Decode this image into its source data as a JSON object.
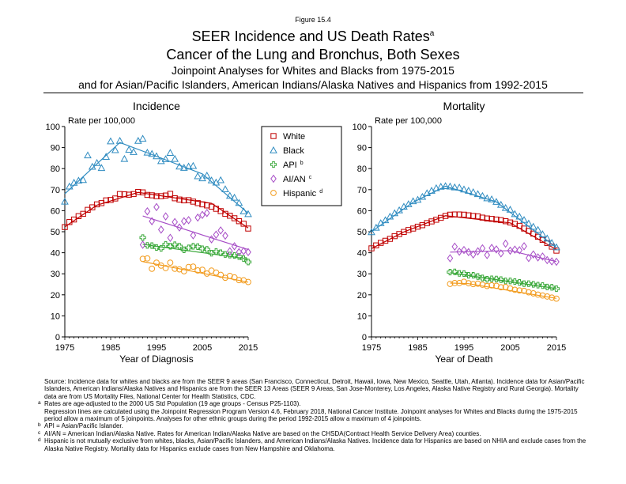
{
  "figure_number": "Figure 15.4",
  "title": {
    "line1": "SEER Incidence and US Death Rates",
    "line1_sup": "a",
    "line2": "Cancer of the Lung and Bronchus, Both Sexes",
    "line3": "Joinpoint Analyses for Whites and Blacks from 1975-2015",
    "line4": "and for Asian/Pacific Islanders, American Indians/Alaska Natives and Hispanics from 1992-2015"
  },
  "legend": {
    "items": [
      {
        "label": "White",
        "sup": "",
        "color": "#c00000",
        "marker": "square"
      },
      {
        "label": "Black",
        "sup": "",
        "color": "#2e8bc0",
        "marker": "triangle"
      },
      {
        "label": "API",
        "sup": "b",
        "color": "#3aa83a",
        "marker": "cross"
      },
      {
        "label": "AI/AN",
        "sup": "c",
        "color": "#a64cc6",
        "marker": "diamond"
      },
      {
        "label": "Hispanic",
        "sup": "d",
        "color": "#f29b1d",
        "marker": "circle"
      }
    ]
  },
  "chart_data": [
    {
      "type": "scatter",
      "panel_title": "Incidence",
      "ylabel": "Rate per 100,000",
      "xlabel": "Year of Diagnosis",
      "xlim": [
        1975,
        2015
      ],
      "ylim": [
        0,
        100
      ],
      "xticks": [
        1975,
        1985,
        1995,
        2005,
        2015
      ],
      "yticks": [
        0,
        10,
        20,
        30,
        40,
        50,
        60,
        70,
        80,
        90,
        100
      ],
      "series": [
        {
          "name": "White",
          "x_start": 1975,
          "values": [
            52.2,
            54.6,
            55.8,
            57.4,
            58.5,
            60.4,
            61.6,
            63.0,
            63.6,
            64.9,
            65.1,
            65.8,
            67.9,
            67.8,
            67.6,
            67.9,
            68.9,
            68.7,
            67.5,
            67.3,
            66.9,
            66.9,
            67.2,
            68.0,
            65.9,
            65.3,
            64.9,
            65.0,
            64.3,
            63.6,
            63.0,
            62.5,
            61.9,
            60.9,
            59.8,
            58.5,
            57.6,
            56.4,
            55.0,
            53.8,
            51.5
          ],
          "fit_x": [
            1975,
            1982,
            1991,
            2007,
            2015
          ],
          "fit_y": [
            52.3,
            62.6,
            68.7,
            63.5,
            51.8
          ]
        },
        {
          "name": "Black",
          "x_start": 1975,
          "values": [
            64.3,
            71.5,
            73.3,
            74.3,
            74.6,
            86.3,
            80.9,
            82.7,
            80.3,
            85.6,
            93.0,
            88.8,
            93.2,
            84.6,
            89.0,
            87.9,
            93.2,
            94.2,
            87.6,
            87.0,
            85.9,
            83.6,
            84.5,
            87.5,
            84.6,
            81.0,
            80.4,
            81.0,
            81.3,
            76.4,
            75.4,
            76.7,
            74.4,
            73.4,
            74.5,
            70.2,
            67.1,
            66.2,
            63.7,
            59.7,
            58.4
          ],
          "fit_x": [
            1975,
            1987,
            1993,
            2005,
            2015
          ],
          "fit_y": [
            68.0,
            92.4,
            87.5,
            77.5,
            58.8
          ]
        },
        {
          "name": "API",
          "x_start": 1992,
          "values": [
            47.2,
            43.5,
            43.4,
            42.5,
            42.1,
            44.0,
            43.1,
            43.8,
            43.1,
            41.4,
            42.3,
            43.1,
            42.9,
            41.9,
            41.6,
            39.8,
            40.6,
            40.0,
            39.2,
            38.9,
            38.7,
            38.2,
            37.2,
            35.6
          ],
          "fit_x": [
            1992,
            2015
          ],
          "fit_y": [
            44.0,
            37.0
          ]
        },
        {
          "name": "AI/AN",
          "x_start": 1992,
          "values": [
            43.8,
            59.7,
            55.0,
            61.7,
            51.0,
            57.3,
            47.1,
            54.6,
            52.0,
            55.0,
            55.5,
            48.3,
            56.7,
            58.0,
            58.9,
            46.4,
            48.6,
            50.6,
            48.1,
            40.7,
            43.1,
            40.3,
            40.8,
            40.3
          ],
          "fit_x": [
            1992,
            2015
          ],
          "fit_y": [
            57.5,
            41.5
          ]
        },
        {
          "name": "Hispanic",
          "x_start": 1992,
          "values": [
            37.1,
            37.3,
            32.4,
            35.3,
            33.9,
            32.7,
            35.3,
            32.4,
            32.1,
            31.2,
            33.2,
            33.4,
            31.6,
            31.9,
            30.1,
            31.5,
            30.6,
            29.5,
            28.1,
            29.0,
            28.3,
            27.0,
            26.9,
            26.1
          ],
          "fit_x": [
            1992,
            2015
          ],
          "fit_y": [
            35.8,
            26.0
          ]
        }
      ]
    },
    {
      "type": "scatter",
      "panel_title": "Mortality",
      "ylabel": "Rate per 100,000",
      "xlabel": "Year of Death",
      "xlim": [
        1975,
        2015
      ],
      "ylim": [
        0,
        100
      ],
      "xticks": [
        1975,
        1985,
        1995,
        2005,
        2015
      ],
      "yticks": [
        0,
        10,
        20,
        30,
        40,
        50,
        60,
        70,
        80,
        90,
        100
      ],
      "series": [
        {
          "name": "White",
          "x_start": 1975,
          "values": [
            42.1,
            43.5,
            44.7,
            45.7,
            46.6,
            47.9,
            48.9,
            49.9,
            50.8,
            51.5,
            52.4,
            53.1,
            54.1,
            54.9,
            55.7,
            56.6,
            57.5,
            58.1,
            58.2,
            58.2,
            58.1,
            57.8,
            57.5,
            57.3,
            56.7,
            56.3,
            56.1,
            55.8,
            55.5,
            55.0,
            54.4,
            53.7,
            52.8,
            51.5,
            50.4,
            49.1,
            47.6,
            46.1,
            44.6,
            42.9,
            41.0
          ],
          "fit_x": [
            1975,
            1982,
            1991,
            2005,
            2015
          ],
          "fit_y": [
            42.0,
            49.9,
            57.6,
            54.2,
            41.5
          ]
        },
        {
          "name": "Black",
          "x_start": 1975,
          "values": [
            49.8,
            51.9,
            54.1,
            55.5,
            57.2,
            58.8,
            60.2,
            61.9,
            63.1,
            64.5,
            65.2,
            66.6,
            68.3,
            69.5,
            70.7,
            71.4,
            71.7,
            71.5,
            71.1,
            71.0,
            70.1,
            69.5,
            68.8,
            67.9,
            67.0,
            65.9,
            65.4,
            64.2,
            62.8,
            61.3,
            60.5,
            58.4,
            57.2,
            55.6,
            53.9,
            52.4,
            50.9,
            48.8,
            46.8,
            44.7,
            42.6
          ],
          "fit_x": [
            1975,
            1984,
            1991,
            2002,
            2015
          ],
          "fit_y": [
            50.0,
            64.0,
            71.6,
            64.2,
            42.5
          ]
        },
        {
          "name": "API",
          "x_start": 1992,
          "values": [
            30.8,
            30.9,
            30.2,
            30.1,
            29.3,
            29.3,
            28.7,
            28.0,
            27.4,
            27.6,
            27.5,
            27.2,
            26.6,
            26.6,
            26.3,
            25.9,
            25.3,
            25.3,
            25.0,
            24.6,
            24.4,
            23.7,
            23.6,
            22.9
          ],
          "fit_x": [
            1992,
            2015
          ],
          "fit_y": [
            30.5,
            23.0
          ]
        },
        {
          "name": "AI/AN",
          "x_start": 1992,
          "values": [
            37.4,
            42.9,
            40.5,
            41.3,
            40.3,
            39.2,
            40.7,
            42.1,
            38.9,
            42.3,
            41.6,
            39.7,
            44.3,
            41.0,
            41.5,
            41.2,
            43.1,
            37.5,
            39.2,
            37.8,
            38.2,
            36.5,
            35.9,
            35.7
          ],
          "fit_x": [
            1992,
            2005,
            2015
          ],
          "fit_y": [
            40.3,
            41.0,
            35.8
          ]
        },
        {
          "name": "Hispanic",
          "x_start": 1992,
          "values": [
            25.2,
            25.6,
            25.6,
            26.2,
            25.5,
            25.1,
            25.3,
            24.8,
            24.2,
            24.5,
            24.3,
            23.6,
            23.7,
            23.0,
            22.4,
            22.1,
            21.9,
            21.2,
            20.7,
            20.1,
            19.7,
            19.2,
            18.7,
            18.2
          ],
          "fit_x": [
            1992,
            1996,
            2015
          ],
          "fit_y": [
            25.6,
            25.3,
            18.3
          ]
        }
      ]
    }
  ],
  "footnotes": [
    {
      "mark": "",
      "text": "Source:  Incidence data for whites and blacks are from the SEER 9 areas (San Francisco, Connecticut, Detroit, Hawaii, Iowa, New Mexico, Seattle, Utah, Atlanta).  Incidence data for Asian/Pacific Islanders, American Indians/Alaska Natives and Hispanics are from the SEER 13 Areas (SEER 9 Areas, San Jose-Monterey, Los Angeles, Alaska Native Registry and Rural Georgia).  Mortality data are from US Mortality Files, National Center for Health Statistics, CDC."
    },
    {
      "mark": "a",
      "text": "Rates are age-adjusted to the 2000 US Std Population (19 age groups - Census P25-1103)."
    },
    {
      "mark": "",
      "text": "Regression lines are calculated using the Joinpoint Regression Program Version 4.6, February 2018, National Cancer Institute.  Joinpoint analyses for Whites and Blacks during the 1975-2015 period allow a maximum of 5 joinpoints.  Analyses for other ethnic groups during the period 1992-2015 allow a maximum of 4 joinpoints."
    },
    {
      "mark": "b",
      "text": "API = Asian/Pacific Islander."
    },
    {
      "mark": "c",
      "text": "AI/AN = American Indian/Alaska Native.  Rates for American Indian/Alaska Native are based on the CHSDA(Contract Health Service Delivery Area) counties."
    },
    {
      "mark": "d",
      "text": "Hispanic is not mutually exclusive from whites, blacks, Asian/Pacific Islanders, and American Indians/Alaska Natives.  Incidence data for Hispanics are based on NHIA and exclude cases from the Alaska Native Registry.  Mortality data for Hispanics exclude cases from New Hampshire and Oklahoma."
    }
  ]
}
